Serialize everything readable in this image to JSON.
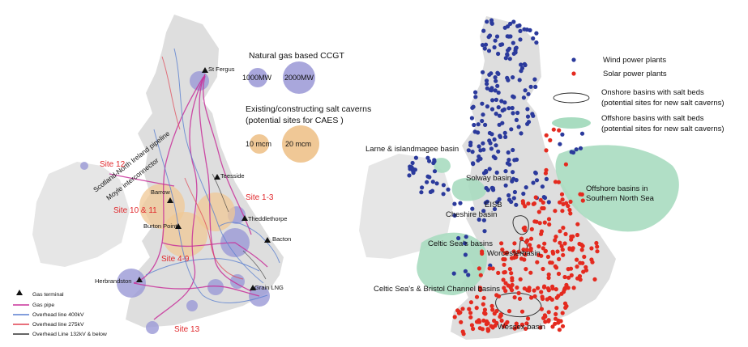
{
  "left_map": {
    "legend_ccgt": {
      "title": "Natural gas based CCGT",
      "small": "1000MW",
      "large": "2000MW"
    },
    "legend_caverns": {
      "title_line1": "Existing/constructing salt caverns",
      "title_line2": "(potential sites for CAES )",
      "small": "10 mcm",
      "large": "20 mcm"
    },
    "places": {
      "st_fergus": "St Fergus",
      "teesside": "Teesside",
      "barrow": "Barrow",
      "theddlethorpe": "Theddlethorpe",
      "burton_point": "Burton Point",
      "bacton": "Bacton",
      "herbrandston": "Herbrandston",
      "grain_lng": "Grain LNG"
    },
    "pipelines": {
      "scotland_ni": "Scotland-North Ireland pipeline",
      "moyle": "Moyle interconnector"
    },
    "sites": {
      "s12": "Site 12",
      "s1_3": "Site 1-3",
      "s10_11": "Site 10 & 11",
      "s4_9": "Site 4-9",
      "s13": "Site 13"
    },
    "network_legend": {
      "gas_terminal": "Gas terminal",
      "gas_pipe": "Gas pipe",
      "line_400": "Overhead line 400kV",
      "line_275": "Overhead line 275kV",
      "line_132": "Overhead Line 132kV & below"
    }
  },
  "right_map": {
    "legend": {
      "wind": "Wind power plants",
      "solar": "Solar power plants",
      "onshore_line1": "Onshore basins with salt beds",
      "onshore_line2": "(potential sites for new salt caverns)",
      "offshore_line1": "Offshore basins with salt beds",
      "offshore_line2": "(potential sites for new salt caverns)"
    },
    "basins": {
      "larne": "Larne & islandmagee basin",
      "solway": "Solway basin",
      "offshore_line1": "Offshore basins in",
      "offshore_line2": "Southern North Sea",
      "eisb": "EISB",
      "cheshire": "Cheshire basin",
      "celtic": "Celtic Sea's basins",
      "worcester": "Worcesterbasin",
      "celtic_bristol": "Celtic Sea's & Bristol Channel basins",
      "wessex": "Wessex basin"
    }
  },
  "colors": {
    "land": "#dedede",
    "land_ireland": "#e6e6e6",
    "wind": "#2b3a9c",
    "solar": "#e42a1f",
    "ccgt": "#9a98d6",
    "cavern": "#f0c896",
    "offshore_basin": "#a8dcc0",
    "gas_pipe": "#c8309a",
    "line_400": "#5a7fd0",
    "line_275": "#e04050",
    "line_132": "#333333",
    "site_label": "#e0262a"
  }
}
